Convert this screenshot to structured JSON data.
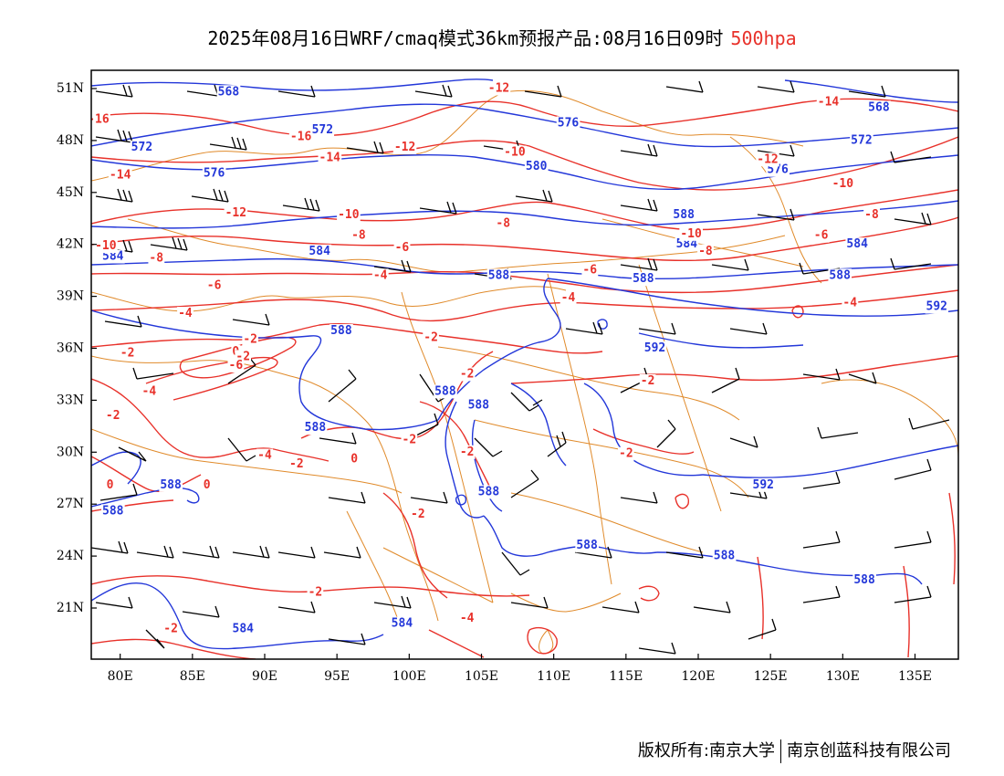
{
  "title": {
    "main": "2025年08月16日WRF/cmaq模式36km预报产品:08月16日09时",
    "level": "500hpa"
  },
  "axes": {
    "lat_labels": [
      "51N",
      "48N",
      "45N",
      "42N",
      "39N",
      "36N",
      "33N",
      "30N",
      "27N",
      "24N",
      "21N"
    ],
    "lon_labels": [
      "80E",
      "85E",
      "90E",
      "95E",
      "100E",
      "105E",
      "110E",
      "115E",
      "120E",
      "125E",
      "130E",
      "135E"
    ]
  },
  "colors": {
    "height_contour": "#2337d9",
    "temperature_contour": "#e8312a",
    "province_boundary": "#e08a2a",
    "wind_barb": "#000000"
  },
  "contour_labels": {
    "height": [
      {
        "text": "568",
        "lon": 87.5,
        "lat": 50.8
      },
      {
        "text": "572",
        "lon": 81.5,
        "lat": 47.6
      },
      {
        "text": "572",
        "lon": 94.0,
        "lat": 48.6
      },
      {
        "text": "576",
        "lon": 86.5,
        "lat": 46.1
      },
      {
        "text": "576",
        "lon": 111.0,
        "lat": 49.0
      },
      {
        "text": "580",
        "lon": 108.8,
        "lat": 46.5
      },
      {
        "text": "568",
        "lon": 132.5,
        "lat": 49.9
      },
      {
        "text": "572",
        "lon": 131.3,
        "lat": 48.0
      },
      {
        "text": "576",
        "lon": 125.5,
        "lat": 46.3
      },
      {
        "text": "584",
        "lon": 79.5,
        "lat": 41.3
      },
      {
        "text": "584",
        "lon": 93.8,
        "lat": 41.6
      },
      {
        "text": "584",
        "lon": 119.2,
        "lat": 42.0
      },
      {
        "text": "584",
        "lon": 131.0,
        "lat": 42.0
      },
      {
        "text": "588",
        "lon": 119.0,
        "lat": 43.7
      },
      {
        "text": "588",
        "lon": 106.2,
        "lat": 40.2
      },
      {
        "text": "588",
        "lon": 116.2,
        "lat": 40.0
      },
      {
        "text": "588",
        "lon": 129.8,
        "lat": 40.2
      },
      {
        "text": "588",
        "lon": 95.3,
        "lat": 37.0
      },
      {
        "text": "592",
        "lon": 117.0,
        "lat": 36.0
      },
      {
        "text": "592",
        "lon": 136.5,
        "lat": 38.4
      },
      {
        "text": "588",
        "lon": 102.5,
        "lat": 33.5
      },
      {
        "text": "588",
        "lon": 104.8,
        "lat": 32.7
      },
      {
        "text": "588",
        "lon": 93.5,
        "lat": 31.4
      },
      {
        "text": "588",
        "lon": 83.5,
        "lat": 28.1
      },
      {
        "text": "588",
        "lon": 79.5,
        "lat": 26.6
      },
      {
        "text": "588",
        "lon": 105.5,
        "lat": 27.7
      },
      {
        "text": "588",
        "lon": 112.3,
        "lat": 24.6
      },
      {
        "text": "588",
        "lon": 121.8,
        "lat": 24.0
      },
      {
        "text": "592",
        "lon": 124.5,
        "lat": 28.1
      },
      {
        "text": "588",
        "lon": 131.5,
        "lat": 22.6
      },
      {
        "text": "584",
        "lon": 88.5,
        "lat": 19.8
      },
      {
        "text": "584",
        "lon": 99.5,
        "lat": 20.1
      }
    ],
    "temperature": [
      {
        "text": "-16",
        "lon": 78.5,
        "lat": 49.2
      },
      {
        "text": "-16",
        "lon": 92.5,
        "lat": 48.2
      },
      {
        "text": "-12",
        "lon": 99.7,
        "lat": 47.6
      },
      {
        "text": "-12",
        "lon": 106.2,
        "lat": 51.0
      },
      {
        "text": "-14",
        "lon": 80.0,
        "lat": 46.0
      },
      {
        "text": "-14",
        "lon": 94.5,
        "lat": 47.0
      },
      {
        "text": "-10",
        "lon": 107.3,
        "lat": 47.3
      },
      {
        "text": "-12",
        "lon": 88.0,
        "lat": 43.8
      },
      {
        "text": "-10",
        "lon": 95.8,
        "lat": 43.7
      },
      {
        "text": "-8",
        "lon": 106.5,
        "lat": 43.2
      },
      {
        "text": "-14",
        "lon": 129.0,
        "lat": 50.2
      },
      {
        "text": "-12",
        "lon": 124.8,
        "lat": 46.9
      },
      {
        "text": "-10",
        "lon": 130.0,
        "lat": 45.5
      },
      {
        "text": "-10",
        "lon": 119.5,
        "lat": 42.6
      },
      {
        "text": "-8",
        "lon": 132.0,
        "lat": 43.7
      },
      {
        "text": "-6",
        "lon": 128.5,
        "lat": 42.5
      },
      {
        "text": "-8",
        "lon": 120.5,
        "lat": 41.6
      },
      {
        "text": "-10",
        "lon": 79.0,
        "lat": 41.9
      },
      {
        "text": "-8",
        "lon": 82.5,
        "lat": 41.2
      },
      {
        "text": "-8",
        "lon": 96.5,
        "lat": 42.5
      },
      {
        "text": "-6",
        "lon": 99.5,
        "lat": 41.8
      },
      {
        "text": "-6",
        "lon": 112.5,
        "lat": 40.5
      },
      {
        "text": "-4",
        "lon": 98.0,
        "lat": 40.2
      },
      {
        "text": "-4",
        "lon": 111.0,
        "lat": 38.9
      },
      {
        "text": "-6",
        "lon": 86.5,
        "lat": 39.6
      },
      {
        "text": "-4",
        "lon": 130.5,
        "lat": 38.6
      },
      {
        "text": "-4",
        "lon": 84.5,
        "lat": 38.0
      },
      {
        "text": "-2",
        "lon": 80.5,
        "lat": 35.7
      },
      {
        "text": "-2",
        "lon": 101.5,
        "lat": 36.6
      },
      {
        "text": "-2",
        "lon": 89.0,
        "lat": 36.5
      },
      {
        "text": "0",
        "lon": 88.0,
        "lat": 35.8
      },
      {
        "text": "-2",
        "lon": 88.5,
        "lat": 35.5
      },
      {
        "text": "-6",
        "lon": 88.0,
        "lat": 35.0
      },
      {
        "text": "-4",
        "lon": 82.0,
        "lat": 33.5
      },
      {
        "text": "-2",
        "lon": 79.5,
        "lat": 32.1
      },
      {
        "text": "-2",
        "lon": 104.0,
        "lat": 34.5
      },
      {
        "text": "-2",
        "lon": 116.5,
        "lat": 34.1
      },
      {
        "text": "-2",
        "lon": 100.0,
        "lat": 30.7
      },
      {
        "text": "-2",
        "lon": 104.0,
        "lat": 30.0
      },
      {
        "text": "-2",
        "lon": 115.0,
        "lat": 29.9
      },
      {
        "text": "-4",
        "lon": 90.0,
        "lat": 29.8
      },
      {
        "text": "-2",
        "lon": 92.2,
        "lat": 29.3
      },
      {
        "text": "0",
        "lon": 96.2,
        "lat": 29.6
      },
      {
        "text": "0",
        "lon": 79.3,
        "lat": 28.1
      },
      {
        "text": "0",
        "lon": 86.0,
        "lat": 28.1
      },
      {
        "text": "-2",
        "lon": 100.6,
        "lat": 26.4
      },
      {
        "text": "-2",
        "lon": 93.5,
        "lat": 21.9
      },
      {
        "text": "-2",
        "lon": 83.5,
        "lat": 19.8
      },
      {
        "text": "-4",
        "lon": 104.0,
        "lat": 20.4
      }
    ]
  },
  "footer": {
    "left": "版权所有:南京大学",
    "right": "南京创蓝科技有限公司"
  }
}
